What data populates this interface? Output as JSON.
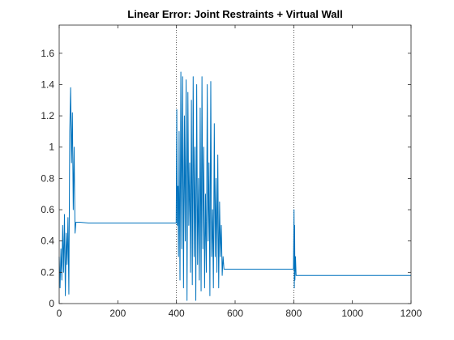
{
  "chart_data": {
    "type": "line",
    "title": "Linear Error: Joint Restraints + Virtual Wall",
    "xlabel": "",
    "ylabel": "",
    "xlim": [
      0,
      1200
    ],
    "ylim": [
      0,
      1.78
    ],
    "xticks": [
      0,
      200,
      400,
      600,
      800,
      1000,
      1200
    ],
    "xtick_labels": [
      "0",
      "200",
      "400",
      "600",
      "800",
      "1000",
      "1200"
    ],
    "yticks": [
      0,
      0.2,
      0.4,
      0.6,
      0.8,
      1,
      1.2,
      1.4,
      1.6
    ],
    "ytick_labels": [
      "0",
      "0.2",
      "0.4",
      "0.6",
      "0.8",
      "1",
      "1.2",
      "1.4",
      "1.6"
    ],
    "grid": false,
    "legend": "none",
    "box": true,
    "vertical_reference_lines": [
      400,
      800
    ],
    "series": [
      {
        "color": "#0072BD",
        "x": [
          0,
          3,
          6,
          9,
          12,
          15,
          18,
          21,
          24,
          27,
          30,
          33,
          36,
          39,
          42,
          45,
          48,
          51,
          54,
          57,
          60,
          70,
          100,
          200,
          300,
          399,
          401,
          403,
          405,
          407,
          409,
          412,
          415,
          418,
          421,
          424,
          427,
          430,
          433,
          436,
          439,
          442,
          445,
          448,
          451,
          454,
          457,
          460,
          463,
          466,
          469,
          472,
          475,
          478,
          481,
          484,
          487,
          490,
          493,
          496,
          499,
          502,
          505,
          508,
          511,
          514,
          517,
          520,
          523,
          526,
          529,
          532,
          535,
          538,
          541,
          544,
          547,
          550,
          553,
          556,
          559,
          562,
          565,
          600,
          700,
          799,
          801,
          802,
          803,
          804,
          806,
          808,
          820,
          1000,
          1200
        ],
        "y": [
          0.3,
          0.1,
          0.35,
          0.15,
          0.5,
          0.2,
          0.57,
          0.05,
          0.45,
          0.25,
          0.55,
          0.06,
          1.1,
          1.38,
          0.9,
          1.22,
          0.6,
          1.0,
          0.45,
          0.52,
          0.52,
          0.52,
          0.515,
          0.515,
          0.515,
          0.515,
          1.24,
          0.5,
          0.75,
          0.3,
          1.1,
          0.15,
          1.48,
          0.35,
          1.45,
          0.1,
          1.2,
          0.4,
          1.43,
          0.02,
          1.35,
          0.5,
          0.9,
          0.2,
          1.3,
          0.12,
          1.45,
          0.3,
          1.0,
          0.02,
          1.4,
          0.25,
          0.8,
          0.15,
          1.25,
          0.08,
          1.45,
          0.35,
          1.0,
          0.1,
          0.7,
          0.2,
          1.4,
          0.4,
          0.9,
          0.05,
          1.42,
          0.3,
          0.6,
          0.1,
          1.15,
          0.3,
          0.8,
          0.2,
          0.95,
          0.1,
          0.65,
          0.3,
          0.5,
          0.18,
          0.3,
          0.22,
          0.22,
          0.22,
          0.22,
          0.22,
          0.6,
          0.1,
          0.5,
          0.15,
          0.3,
          0.18,
          0.18,
          0.18,
          0.18
        ]
      }
    ]
  }
}
